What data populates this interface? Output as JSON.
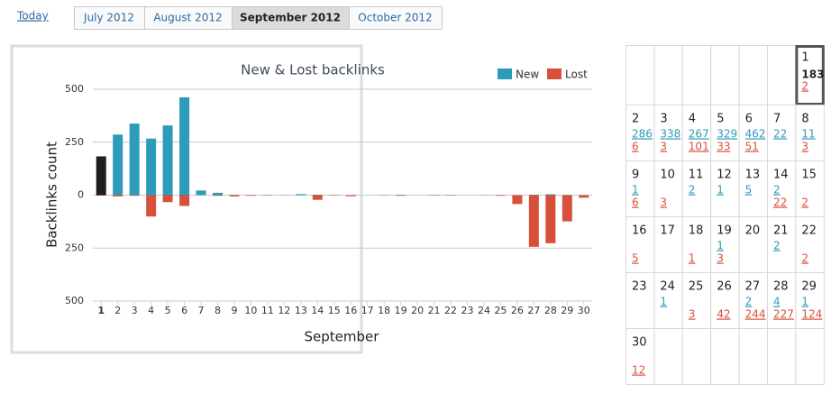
{
  "nav": {
    "today": "Today",
    "tabs": [
      "July 2012",
      "August 2012",
      "September 2012",
      "October 2012"
    ],
    "active": 2
  },
  "chart_data": {
    "type": "bar",
    "title": "New & Lost backlinks",
    "x_label": "September",
    "y_label": "Backlinks count",
    "categories": [
      "1",
      "2",
      "3",
      "4",
      "5",
      "6",
      "7",
      "8",
      "9",
      "10",
      "11",
      "12",
      "13",
      "14",
      "15",
      "16",
      "17",
      "18",
      "19",
      "20",
      "21",
      "22",
      "23",
      "24",
      "25",
      "26",
      "27",
      "28",
      "29",
      "30"
    ],
    "series": [
      {
        "name": "New",
        "color": "#2e9bb8",
        "values": [
          183,
          286,
          338,
          267,
          329,
          462,
          22,
          11,
          1,
          0,
          2,
          1,
          5,
          2,
          0,
          0,
          0,
          0,
          1,
          0,
          2,
          0,
          0,
          1,
          0,
          0,
          2,
          4,
          1,
          0
        ]
      },
      {
        "name": "Lost",
        "color": "#d9503a",
        "values": [
          -2,
          -6,
          -3,
          -101,
          -33,
          -51,
          0,
          -3,
          -6,
          -3,
          0,
          0,
          0,
          -22,
          -2,
          -5,
          0,
          -1,
          -3,
          0,
          0,
          -2,
          0,
          0,
          -3,
          -42,
          -244,
          -227,
          -124,
          -12
        ]
      }
    ],
    "highlight": {
      "index": 0,
      "color": "#1e1e1e"
    },
    "ylim": [
      -500,
      500
    ],
    "yticks": [
      500,
      250,
      0,
      {
        "value": -250,
        "label": "250"
      },
      {
        "value": -500,
        "label": "500"
      }
    ],
    "grid": true,
    "legend": "top-right"
  },
  "calendar": {
    "weeks": [
      [
        null,
        null,
        null,
        null,
        null,
        null,
        {
          "day": 1,
          "new": 183,
          "lost": 2,
          "selected": true
        }
      ],
      [
        {
          "day": 2,
          "new": 286,
          "lost": 6
        },
        {
          "day": 3,
          "new": 338,
          "lost": 3
        },
        {
          "day": 4,
          "new": 267,
          "lost": 101
        },
        {
          "day": 5,
          "new": 329,
          "lost": 33
        },
        {
          "day": 6,
          "new": 462,
          "lost": 51
        },
        {
          "day": 7,
          "new": 22
        },
        {
          "day": 8,
          "new": 11,
          "lost": 3
        }
      ],
      [
        {
          "day": 9,
          "new": 1,
          "lost": 6
        },
        {
          "day": 10,
          "lost": 3
        },
        {
          "day": 11,
          "new": 2
        },
        {
          "day": 12,
          "new": 1
        },
        {
          "day": 13,
          "new": 5
        },
        {
          "day": 14,
          "new": 2,
          "lost": 22
        },
        {
          "day": 15,
          "lost": 2
        }
      ],
      [
        {
          "day": 16,
          "lost": 5
        },
        {
          "day": 17
        },
        {
          "day": 18,
          "lost": 1
        },
        {
          "day": 19,
          "new": 1,
          "lost": 3
        },
        {
          "day": 20
        },
        {
          "day": 21,
          "new": 2
        },
        {
          "day": 22,
          "lost": 2
        }
      ],
      [
        {
          "day": 23
        },
        {
          "day": 24,
          "new": 1
        },
        {
          "day": 25,
          "lost": 3
        },
        {
          "day": 26,
          "lost": 42
        },
        {
          "day": 27,
          "new": 2,
          "lost": 244
        },
        {
          "day": 28,
          "new": 4,
          "lost": 227
        },
        {
          "day": 29,
          "new": 1,
          "lost": 124
        }
      ],
      [
        {
          "day": 30,
          "lost": 12
        },
        null,
        null,
        null,
        null,
        null,
        null
      ]
    ]
  }
}
